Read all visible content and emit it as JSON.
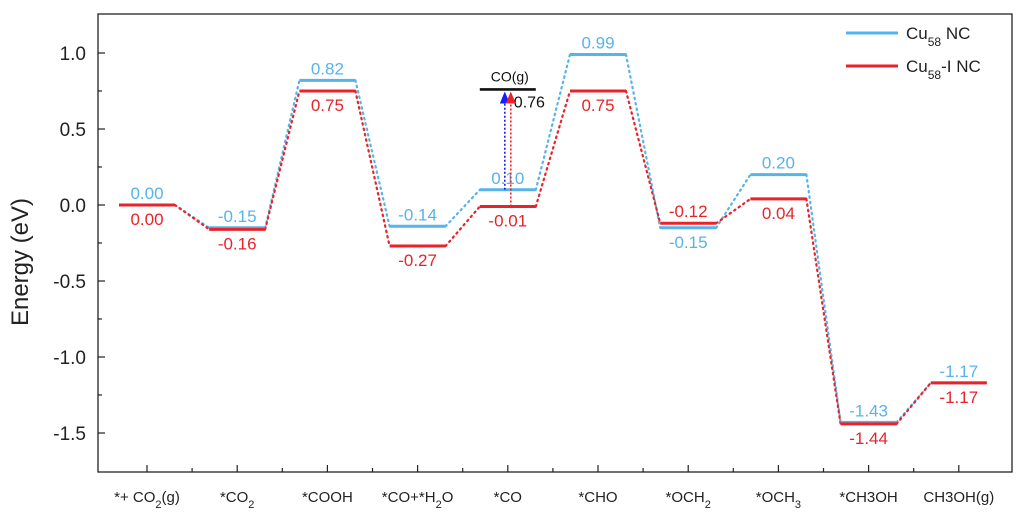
{
  "chart_data": {
    "type": "line",
    "ylabel": "Energy (eV)",
    "ylim": [
      -1.75,
      1.25
    ],
    "yticks": [
      "1.0",
      "0.5",
      "0.0",
      "-0.5",
      "-1.0",
      "-1.5"
    ],
    "categories": [
      {
        "main": "*+ CO",
        "sub": "2",
        "tail": "(g)"
      },
      {
        "main": "*CO",
        "sub": "2",
        "tail": ""
      },
      {
        "main": "*COOH",
        "sub": "",
        "tail": ""
      },
      {
        "main": "*CO+*H",
        "sub": "2",
        "tail": "O"
      },
      {
        "main": "*CO",
        "sub": "",
        "tail": ""
      },
      {
        "main": "*CHO",
        "sub": "",
        "tail": ""
      },
      {
        "main": "*OCH",
        "sub": "2",
        "tail": ""
      },
      {
        "main": "*OCH",
        "sub": "3",
        "tail": ""
      },
      {
        "main": "*CH3OH",
        "sub": "",
        "tail": ""
      },
      {
        "main": "CH3OH(g)",
        "sub": "",
        "tail": ""
      }
    ],
    "series": [
      {
        "name": "Cu58 NC",
        "legend": {
          "pre": "Cu",
          "sub": "58",
          "post": " NC"
        },
        "color": "#56b4e9",
        "values": [
          0.0,
          -0.15,
          0.82,
          -0.14,
          0.1,
          0.99,
          -0.15,
          0.2,
          -1.43,
          -1.17
        ],
        "labels": [
          "0.00",
          "-0.15",
          "0.82",
          "-0.14",
          "0.10",
          "0.99",
          "-0.15",
          "0.20",
          "-1.43",
          "-1.17"
        ],
        "label_position": [
          "above",
          "above",
          "above",
          "above",
          "above",
          "above",
          "below",
          "above",
          "above",
          "above"
        ]
      },
      {
        "name": "Cu58-I NC",
        "legend": {
          "pre": "Cu",
          "sub": "58",
          "post": "-I NC"
        },
        "color": "#e8232a",
        "values": [
          0.0,
          -0.16,
          0.75,
          -0.27,
          -0.01,
          0.75,
          -0.12,
          0.04,
          -1.44,
          -1.17
        ],
        "labels": [
          "0.00",
          "-0.16",
          "0.75",
          "-0.27",
          "-0.01",
          "0.75",
          "-0.12",
          "0.04",
          "-1.44",
          "-1.17"
        ],
        "label_position": [
          "below",
          "below",
          "below",
          "below",
          "below",
          "below",
          "above",
          "below",
          "below",
          "below"
        ]
      }
    ],
    "annotation": {
      "label": "CO(g)",
      "value": 0.76,
      "value_label": "0.76",
      "category_index": 4,
      "color": "#111111",
      "arrow_colors": [
        "#1a1aff",
        "#e8232a"
      ]
    },
    "legend_position": "top-right",
    "grid": false
  }
}
